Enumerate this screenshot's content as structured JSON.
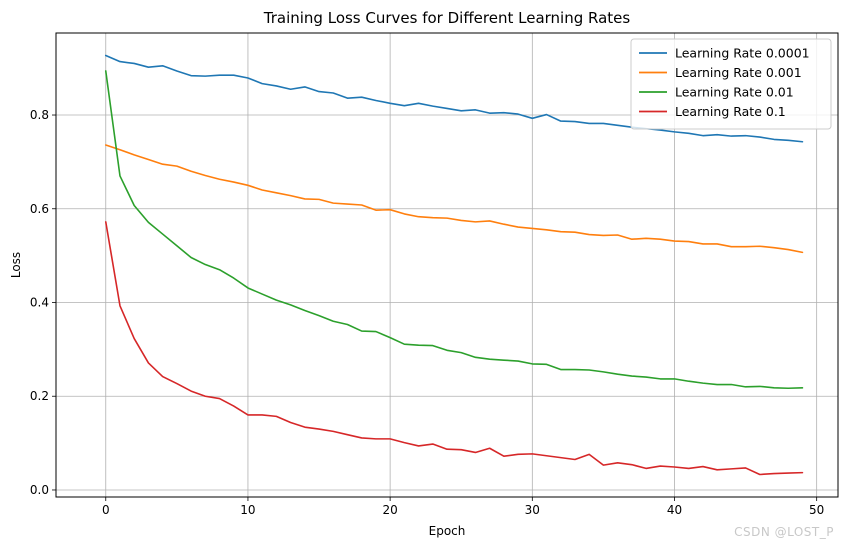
{
  "chart_data": {
    "type": "line",
    "title": "Training Loss Curves for Different Learning Rates",
    "xlabel": "Epoch",
    "ylabel": "Loss",
    "xlim": [
      -3.5,
      51.5
    ],
    "ylim": [
      -0.015,
      0.975
    ],
    "xticks": [
      0,
      10,
      20,
      30,
      40,
      50
    ],
    "yticks": [
      0.0,
      0.2,
      0.4,
      0.6,
      0.8
    ],
    "grid": true,
    "legend_position": "top-right",
    "x": [
      0,
      1,
      2,
      3,
      4,
      5,
      6,
      7,
      8,
      9,
      10,
      11,
      12,
      13,
      14,
      15,
      16,
      17,
      18,
      19,
      20,
      21,
      22,
      23,
      24,
      25,
      26,
      27,
      28,
      29,
      30,
      31,
      32,
      33,
      34,
      35,
      36,
      37,
      38,
      39,
      40,
      41,
      42,
      43,
      44,
      45,
      46,
      47,
      48,
      49
    ],
    "series": [
      {
        "name": "Learning Rate 0.0001",
        "color": "#1f77b4",
        "values": [
          0.927,
          0.914,
          0.91,
          0.902,
          0.905,
          0.894,
          0.884,
          0.883,
          0.885,
          0.885,
          0.879,
          0.867,
          0.862,
          0.855,
          0.86,
          0.85,
          0.847,
          0.836,
          0.838,
          0.831,
          0.825,
          0.82,
          0.825,
          0.819,
          0.814,
          0.809,
          0.811,
          0.804,
          0.805,
          0.802,
          0.793,
          0.801,
          0.787,
          0.786,
          0.782,
          0.782,
          0.778,
          0.774,
          0.771,
          0.768,
          0.764,
          0.761,
          0.756,
          0.758,
          0.755,
          0.756,
          0.753,
          0.748,
          0.746,
          0.743
        ]
      },
      {
        "name": "Learning Rate 0.001",
        "color": "#ff7f0e",
        "values": [
          0.736,
          0.726,
          0.715,
          0.705,
          0.695,
          0.691,
          0.68,
          0.671,
          0.663,
          0.657,
          0.65,
          0.64,
          0.634,
          0.628,
          0.621,
          0.62,
          0.612,
          0.61,
          0.608,
          0.597,
          0.598,
          0.589,
          0.583,
          0.581,
          0.58,
          0.575,
          0.572,
          0.574,
          0.567,
          0.561,
          0.558,
          0.555,
          0.551,
          0.55,
          0.545,
          0.543,
          0.544,
          0.535,
          0.537,
          0.535,
          0.531,
          0.53,
          0.525,
          0.525,
          0.519,
          0.519,
          0.52,
          0.517,
          0.513,
          0.507
        ]
      },
      {
        "name": "Learning Rate 0.01",
        "color": "#2ca02c",
        "values": [
          0.894,
          0.67,
          0.607,
          0.571,
          0.546,
          0.521,
          0.496,
          0.481,
          0.47,
          0.452,
          0.431,
          0.418,
          0.405,
          0.395,
          0.383,
          0.372,
          0.36,
          0.353,
          0.339,
          0.338,
          0.325,
          0.311,
          0.309,
          0.308,
          0.298,
          0.293,
          0.283,
          0.279,
          0.277,
          0.275,
          0.269,
          0.268,
          0.257,
          0.257,
          0.256,
          0.252,
          0.247,
          0.243,
          0.241,
          0.237,
          0.237,
          0.232,
          0.228,
          0.225,
          0.225,
          0.22,
          0.221,
          0.218,
          0.217,
          0.218
        ]
      },
      {
        "name": "Learning Rate 0.1",
        "color": "#d62728",
        "values": [
          0.572,
          0.393,
          0.323,
          0.271,
          0.242,
          0.227,
          0.211,
          0.2,
          0.195,
          0.179,
          0.16,
          0.16,
          0.157,
          0.144,
          0.134,
          0.13,
          0.125,
          0.118,
          0.111,
          0.109,
          0.109,
          0.101,
          0.094,
          0.098,
          0.087,
          0.086,
          0.08,
          0.089,
          0.072,
          0.076,
          0.077,
          0.073,
          0.069,
          0.065,
          0.076,
          0.053,
          0.058,
          0.054,
          0.046,
          0.051,
          0.049,
          0.046,
          0.05,
          0.043,
          0.045,
          0.047,
          0.033,
          0.035,
          0.036,
          0.037
        ]
      }
    ]
  },
  "watermark": "CSDN @LOST_P"
}
